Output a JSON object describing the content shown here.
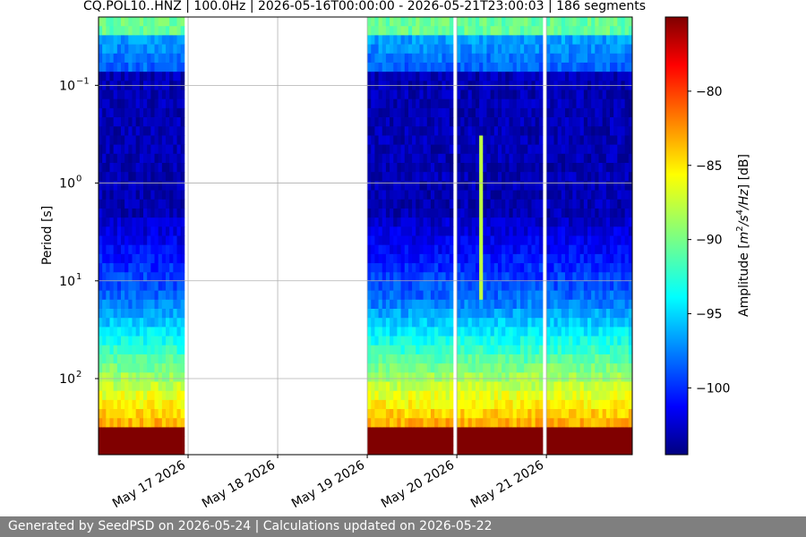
{
  "chart_data": {
    "type": "heatmap",
    "title": "CQ.POL10..HNZ | 100.0Hz | 2026-05-16T00:00:00 - 2026-05-21T23:00:03 | 186 segments",
    "ylabel": "Period [s]",
    "y_scale": "log",
    "y_inverted": true,
    "ylim_period_s": [
      0.02,
      600
    ],
    "y_ticks": [
      {
        "value": 0.1,
        "base": "10",
        "exp": "−1"
      },
      {
        "value": 1,
        "base": "10",
        "exp": "0"
      },
      {
        "value": 10,
        "base": "10",
        "exp": "1"
      },
      {
        "value": 100,
        "base": "10",
        "exp": "2"
      }
    ],
    "xlim": [
      "2026-05-16T00:00:00",
      "2026-05-21T23:00:03"
    ],
    "x_ticks": [
      "May 17 2026",
      "May 18 2026",
      "May 19 2026",
      "May 20 2026",
      "May 21 2026"
    ],
    "grid": true,
    "data_segments": [
      {
        "start": "2026-05-16T00:00:00",
        "end": "2026-05-16T23:00:00"
      },
      {
        "start": "2026-05-19T00:00:00",
        "end": "2026-05-19T23:00:00"
      },
      {
        "start": "2026-05-20T00:00:00",
        "end": "2026-05-20T23:00:00"
      },
      {
        "start": "2026-05-21T00:00:00",
        "end": "2026-05-21T23:00:03"
      }
    ],
    "transient_event": {
      "time": "2026-05-20T06:00:00",
      "period_range_s": [
        0.3,
        15
      ]
    },
    "colorbar": {
      "label_prefix": "Amplitude [",
      "label_unit_a": "m",
      "label_exp_a": "2",
      "label_unit_b": "/s",
      "label_exp_b": "4",
      "label_unit_c": "/Hz",
      "label_suffix": "] [dB]",
      "colormap": "jet",
      "range_db": [
        -104.5,
        -75
      ],
      "ticks": [
        -100,
        -95,
        -90,
        -85,
        -80
      ],
      "tick_labels": [
        "−100",
        "−95",
        "−90",
        "−85",
        "−80"
      ]
    }
  },
  "footer": {
    "text": "Generated by SeedPSD on 2026-05-24 | Calculations updated on 2026-05-22"
  }
}
